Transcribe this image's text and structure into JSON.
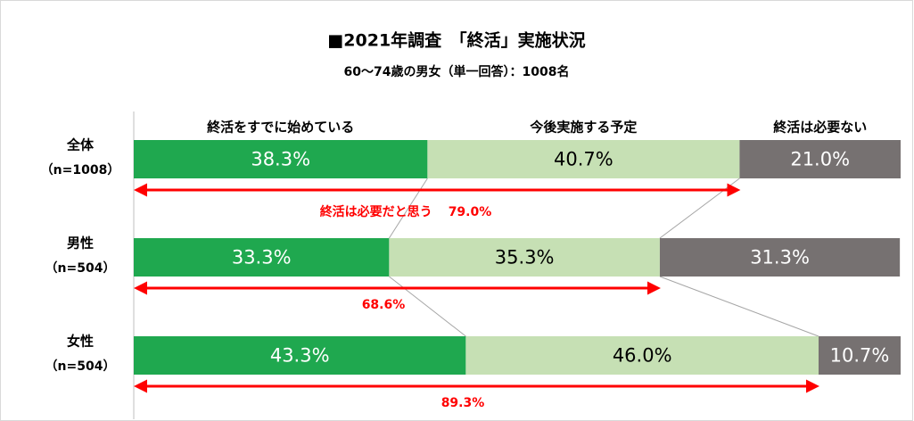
{
  "chart_data": {
    "type": "stacked_bar_horizontal",
    "title": "■2021年調査　「終活」実施状況",
    "subtitle": "60～74歳の男女（単一回答）：1008名",
    "categories": [
      "全体",
      "男性",
      "女性"
    ],
    "category_notes": [
      "（n=1008）",
      "（n=504）",
      "（n=504）"
    ],
    "xlim": [
      0,
      100
    ],
    "series": [
      {
        "name": "終活をすでに始めている",
        "color": "#1fa84f",
        "label_color": "#ffffff",
        "values": [
          38.3,
          33.3,
          43.3
        ],
        "value_labels": [
          "38.3%",
          "33.3%",
          "43.3%"
        ]
      },
      {
        "name": "今後実施する予定",
        "color": "#c6e0b4",
        "label_color": "#000000",
        "values": [
          40.7,
          35.3,
          46.0
        ],
        "value_labels": [
          "40.7%",
          "35.3%",
          "46.0%"
        ]
      },
      {
        "name": "終活は必要ない",
        "color": "#767171",
        "label_color": "#ffffff",
        "values": [
          21.0,
          31.3,
          10.7
        ],
        "value_labels": [
          "21.0%",
          "31.3%",
          "10.7%"
        ]
      }
    ],
    "arrows": [
      {
        "label": "終活は必要だと思う",
        "value": 79.0,
        "value_label": "79.0%"
      },
      {
        "value": 68.6,
        "value_label": "68.6%"
      },
      {
        "value": 89.3,
        "value_label": "89.3%"
      }
    ],
    "arrow_color": "#ff0000"
  }
}
